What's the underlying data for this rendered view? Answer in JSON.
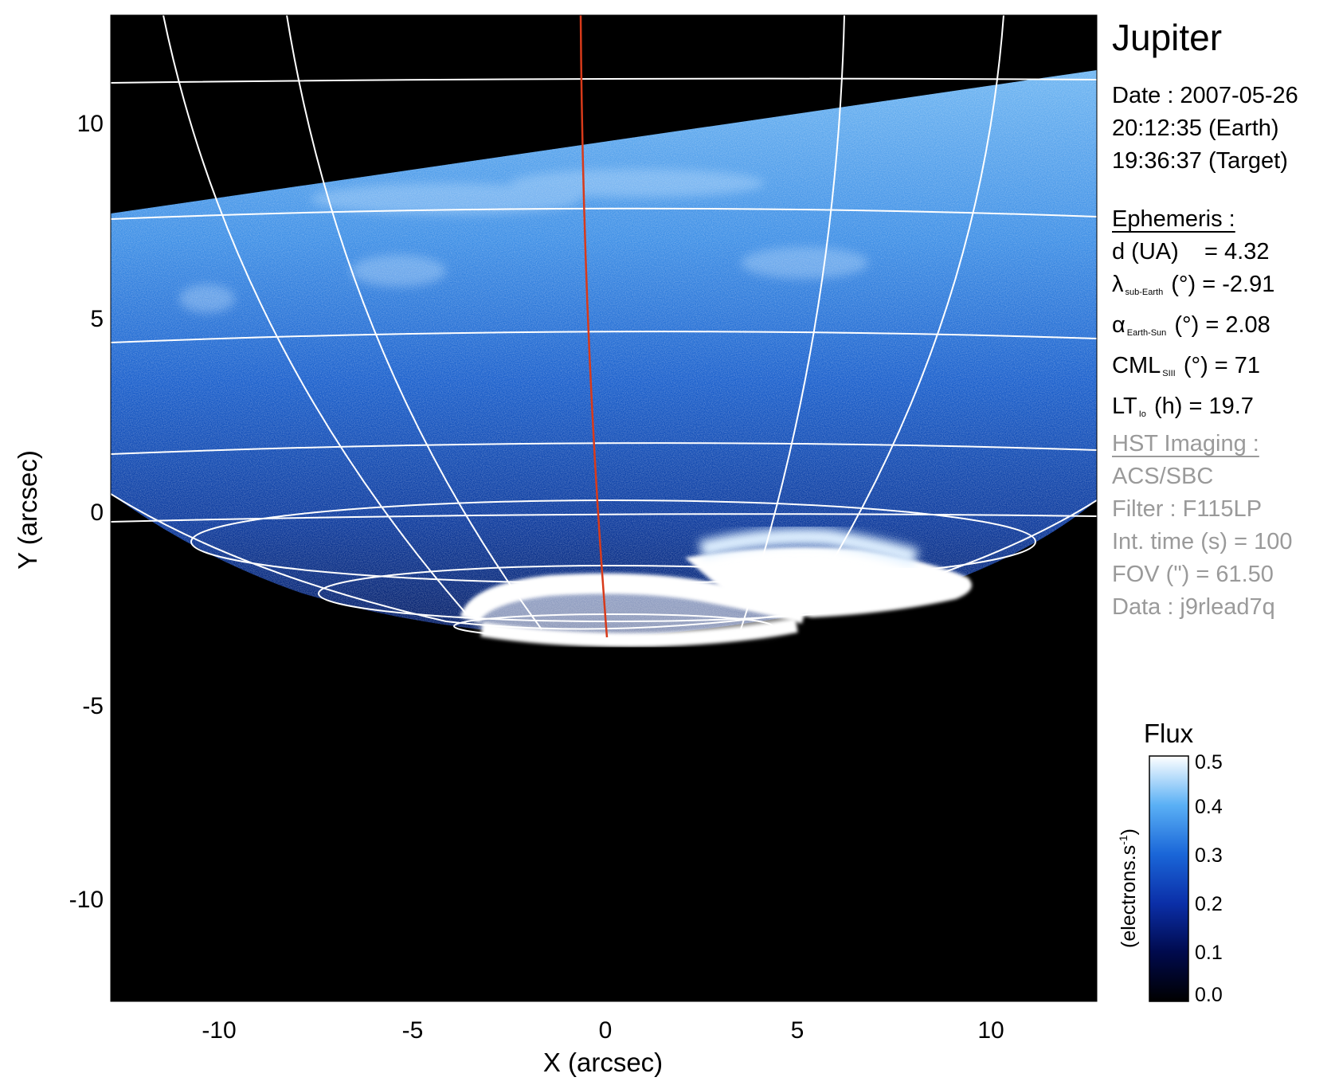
{
  "target": "Jupiter",
  "observation": {
    "date_line": "Date : 2007-05-26",
    "earth_time": "20:12:35 (Earth)",
    "target_time": "19:36:37 (Target)"
  },
  "ephemeris": {
    "header": "Ephemeris :",
    "d_label": "d (UA)",
    "d_value": "= 4.32",
    "lambda_sym": "λ",
    "lambda_sub": "sub-Earth",
    "lambda_rest": "(°) = -2.91",
    "alpha_sym": "α",
    "alpha_sub": "Earth-Sun",
    "alpha_rest": "(°) = 2.08",
    "cml_sym": "CML",
    "cml_sub": "SIII",
    "cml_rest": "(°) = 71",
    "lt_sym": "LT",
    "lt_sub": "Io",
    "lt_rest": "(h) = 19.7"
  },
  "imaging": {
    "header": "HST Imaging :",
    "instrument": "ACS/SBC",
    "filter": "Filter : F115LP",
    "int_time": "Int. time (s) = 100",
    "fov": "FOV (\") = 61.50",
    "data": "Data : j9rlead7q"
  },
  "axes": {
    "xlabel": "X (arcsec)",
    "ylabel": "Y (arcsec)",
    "x_ticks": [
      "-10",
      "-5",
      "0",
      "5",
      "10"
    ],
    "y_ticks": [
      "10",
      "5",
      "0",
      "-5",
      "-10"
    ],
    "x_range": [
      -12.75,
      12.75
    ],
    "y_range": [
      -12.75,
      12.75
    ]
  },
  "colorbar": {
    "title": "Flux",
    "unit_main": "(electrons.s",
    "unit_sup": "-1",
    "unit_end": ")",
    "ticks": [
      "0.5",
      "0.4",
      "0.3",
      "0.2",
      "0.1",
      "0.0"
    ],
    "range": [
      0.0,
      0.5
    ],
    "colors": [
      "#000000",
      "#000a4d",
      "#0b2fa8",
      "#1a66d8",
      "#5ab0f5",
      "#ffffff"
    ]
  },
  "colors": {
    "image_background": "#000000",
    "planet_blue": "#0f4fb8",
    "aurora": "#ffffff",
    "grid": "#ffffff",
    "meridian": "#d83a1a",
    "label_grey": "#9a9a9a"
  }
}
